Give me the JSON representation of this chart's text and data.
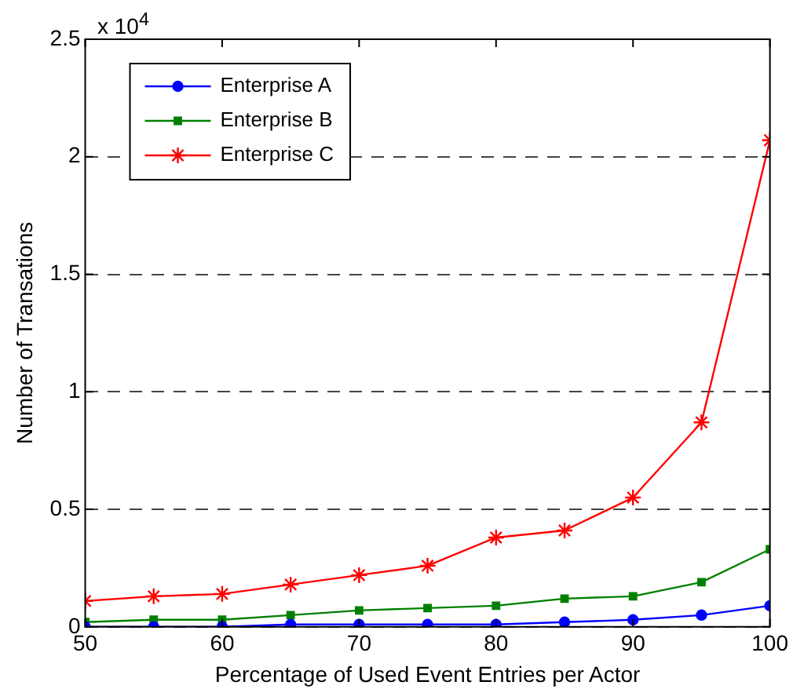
{
  "chart_data": {
    "type": "line",
    "xlabel": "Percentage of Used Event Entries per Actor",
    "ylabel": "Number of Transations",
    "x": [
      50,
      55,
      60,
      65,
      70,
      75,
      80,
      85,
      90,
      95,
      100
    ],
    "series": [
      {
        "name": "Enterprise A",
        "color": "#0000ff",
        "marker": "circle",
        "values": [
          0,
          0,
          0,
          0.01,
          0.01,
          0.01,
          0.01,
          0.02,
          0.03,
          0.05,
          0.09
        ]
      },
      {
        "name": "Enterprise B",
        "color": "#008000",
        "marker": "square",
        "values": [
          0.02,
          0.03,
          0.03,
          0.05,
          0.07,
          0.08,
          0.09,
          0.12,
          0.13,
          0.19,
          0.33
        ]
      },
      {
        "name": "Enterprise C",
        "color": "#ff0000",
        "marker": "cross",
        "values": [
          0.11,
          0.13,
          0.14,
          0.18,
          0.22,
          0.26,
          0.38,
          0.41,
          0.55,
          0.87,
          2.07
        ]
      }
    ],
    "xlim": [
      50,
      100
    ],
    "xticks": [
      50,
      60,
      70,
      80,
      90,
      100
    ],
    "ylim": [
      0,
      2.5
    ],
    "yticks": [
      0,
      0.5,
      1,
      1.5,
      2,
      2.5
    ],
    "grid": "y",
    "legend": "top left",
    "line_style": "solid",
    "annotations": [
      "x 10$^{4}$"
    ]
  }
}
